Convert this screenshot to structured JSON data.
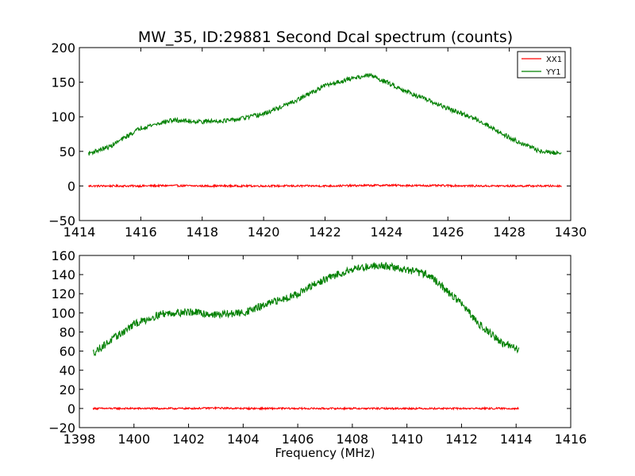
{
  "figure": {
    "title": "MW_35, ID:29881 Second Dcal spectrum (counts)"
  },
  "chart_data": [
    {
      "type": "line",
      "title": "MW_35, ID:29881 Second Dcal spectrum (counts)",
      "xlabel": "",
      "ylabel": "",
      "xlim": [
        1414,
        1430
      ],
      "ylim": [
        -50,
        200
      ],
      "xticks": [
        1414,
        1416,
        1418,
        1420,
        1422,
        1424,
        1426,
        1428,
        1430
      ],
      "yticks": [
        -50,
        0,
        50,
        100,
        150,
        200
      ],
      "grid": false,
      "legend": "top-right",
      "series": [
        {
          "name": "XX1",
          "color": "#ff0000",
          "x": [
            1414.3,
            1415,
            1416,
            1417,
            1418,
            1419,
            1420,
            1421,
            1422,
            1423,
            1424,
            1425,
            1426,
            1427,
            1428,
            1429,
            1429.7
          ],
          "y": [
            0,
            0,
            0,
            0.5,
            0,
            0,
            0,
            0,
            0,
            0.5,
            1,
            0.5,
            0.5,
            0,
            0,
            0,
            0
          ]
        },
        {
          "name": "YY1",
          "color": "#008000",
          "x": [
            1414.3,
            1415,
            1416,
            1417,
            1418,
            1419,
            1420,
            1421,
            1422,
            1423,
            1423.5,
            1424,
            1425,
            1426,
            1427,
            1428,
            1429,
            1429.7
          ],
          "y": [
            47,
            57,
            84,
            95,
            93,
            95,
            104,
            122,
            145,
            157,
            160,
            150,
            130,
            112,
            95,
            70,
            50,
            47
          ]
        }
      ]
    },
    {
      "type": "line",
      "title": "",
      "xlabel": "Frequency (MHz)",
      "ylabel": "",
      "xlim": [
        1398,
        1416
      ],
      "ylim": [
        -20,
        160
      ],
      "xticks": [
        1398,
        1400,
        1402,
        1404,
        1406,
        1408,
        1410,
        1412,
        1414,
        1416
      ],
      "yticks": [
        -20,
        0,
        20,
        40,
        60,
        80,
        100,
        120,
        140,
        160
      ],
      "grid": false,
      "series": [
        {
          "name": "XX1",
          "color": "#ff0000",
          "x": [
            1398.5,
            1399,
            1400,
            1401,
            1402,
            1403,
            1404,
            1405,
            1406,
            1407,
            1408,
            1409,
            1410,
            1411,
            1412,
            1413,
            1414.1
          ],
          "y": [
            0,
            0,
            0,
            0,
            0,
            0.5,
            0,
            0,
            0,
            0,
            0,
            0,
            0,
            0,
            0,
            0,
            0
          ]
        },
        {
          "name": "YY1",
          "color": "#008000",
          "x": [
            1398.5,
            1399,
            1400,
            1401,
            1402,
            1403,
            1404,
            1405,
            1406,
            1407,
            1408,
            1409,
            1410,
            1410.8,
            1411.5,
            1412,
            1412.5,
            1413,
            1413.5,
            1414.1
          ],
          "y": [
            58,
            68,
            88,
            99,
            101,
            98,
            100,
            110,
            120,
            135,
            146,
            150,
            145,
            140,
            122,
            110,
            92,
            80,
            68,
            62
          ]
        }
      ]
    }
  ]
}
